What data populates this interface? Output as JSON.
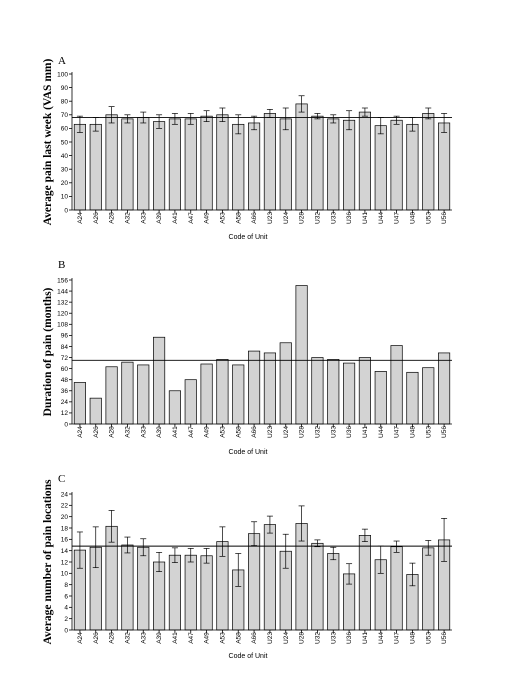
{
  "chart_data": [
    {
      "type": "bar",
      "panel_label": "A",
      "ylabel": "Average pain last week (VAS mm)",
      "xlabel": "Code of Unit",
      "ylim": [
        0,
        100
      ],
      "yticks": [
        0,
        10,
        20,
        30,
        40,
        50,
        60,
        70,
        80,
        90,
        100
      ],
      "reference_line": 68,
      "categories": [
        "A24",
        "A26",
        "A28",
        "A32",
        "A33",
        "A39",
        "A41",
        "A47",
        "A49",
        "A53",
        "A58",
        "A66",
        "U23",
        "U24",
        "U28",
        "U32",
        "U33",
        "U36",
        "U41",
        "U44",
        "U47",
        "U48",
        "U53",
        "U56"
      ],
      "values": [
        63,
        63,
        70,
        67,
        68,
        65,
        67,
        67,
        69,
        70,
        63,
        64,
        71,
        67,
        78,
        69,
        67,
        66,
        72,
        62,
        66,
        63,
        71,
        64
      ],
      "errors": [
        6,
        5,
        6,
        3,
        4,
        5,
        4,
        4,
        4,
        5,
        7,
        5,
        3,
        8,
        6,
        2,
        3,
        7,
        3,
        6,
        3,
        5,
        4,
        7
      ]
    },
    {
      "type": "bar",
      "panel_label": "B",
      "ylabel": "Duration of pain (months)",
      "xlabel": "Code of Unit",
      "ylim": [
        0,
        156
      ],
      "yticks": [
        0,
        12,
        24,
        36,
        48,
        60,
        72,
        84,
        96,
        108,
        120,
        132,
        144,
        156
      ],
      "reference_line": 69,
      "categories": [
        "A24",
        "A26",
        "A28",
        "A32",
        "A33",
        "A39",
        "A41",
        "A47",
        "A49",
        "A53",
        "A58",
        "A66",
        "U23",
        "U24",
        "U28",
        "U32",
        "U33",
        "U36",
        "U41",
        "U44",
        "U47",
        "U48",
        "U53",
        "U56"
      ],
      "values": [
        45,
        28,
        62,
        67,
        64,
        94,
        36,
        48,
        65,
        70,
        64,
        79,
        77,
        88,
        150,
        72,
        70,
        66,
        72,
        57,
        85,
        56,
        61,
        77
      ]
    },
    {
      "type": "bar",
      "panel_label": "C",
      "ylabel": "Average number of pain locations",
      "xlabel": "Code of Unit",
      "ylim": [
        0,
        24
      ],
      "yticks": [
        0,
        2,
        4,
        6,
        8,
        10,
        12,
        14,
        16,
        18,
        20,
        22,
        24
      ],
      "reference_line": 14.8,
      "categories": [
        "A24",
        "A26",
        "A28",
        "A32",
        "A33",
        "A39",
        "A41",
        "A47",
        "A49",
        "A53",
        "A58",
        "A66",
        "U23",
        "U24",
        "U28",
        "U32",
        "U33",
        "U36",
        "U41",
        "U44",
        "U47",
        "U48",
        "U53",
        "U56"
      ],
      "values": [
        14.1,
        14.6,
        18.3,
        15.0,
        14.6,
        12.0,
        13.2,
        13.2,
        13.1,
        15.6,
        10.6,
        17.0,
        18.6,
        13.9,
        18.8,
        15.3,
        13.5,
        9.9,
        16.7,
        12.4,
        14.7,
        9.8,
        14.5,
        15.9
      ]
    }
  ],
  "errors_c": [
    3.2,
    3.6,
    2.8,
    1.4,
    1.5,
    1.7,
    1.3,
    1.2,
    1.3,
    2.6,
    2.9,
    2.1,
    1.5,
    3.0,
    3.1,
    0.6,
    1.1,
    1.8,
    1.1,
    2.4,
    1.0,
    2.0,
    1.3,
    3.8
  ]
}
